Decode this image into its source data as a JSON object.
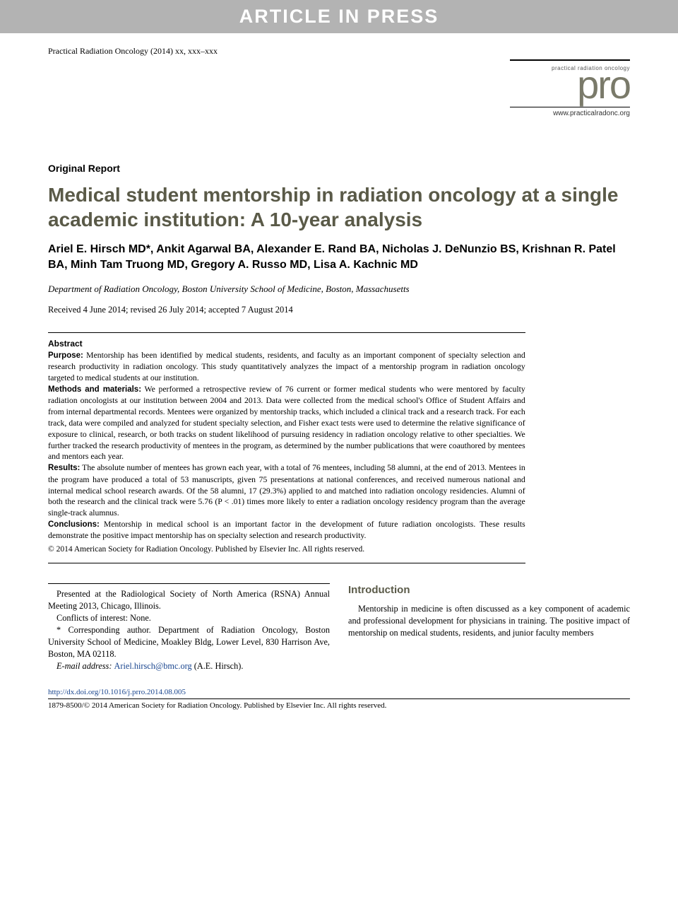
{
  "banner": "ARTICLE IN PRESS",
  "citation": "Practical Radiation Oncology (2014) xx, xxx–xxx",
  "logo": {
    "small": "practical radiation oncology",
    "big": "pro",
    "url": "www.practicalradonc.org",
    "small_color": "#555555",
    "big_color": "#7a7a6a"
  },
  "section_label": "Original Report",
  "title": "Medical student mentorship in radiation oncology at a single academic institution: A 10-year analysis",
  "title_color": "#5a5a48",
  "authors": "Ariel E. Hirsch MD*, Ankit Agarwal BA, Alexander E. Rand BA, Nicholas J. DeNunzio BS, Krishnan R. Patel BA, Minh Tam Truong MD, Gregory A. Russo MD, Lisa A. Kachnic MD",
  "affiliation": "Department of Radiation Oncology, Boston University School of Medicine, Boston, Massachusetts",
  "dates": "Received 4 June 2014; revised 26 July 2014; accepted 7 August 2014",
  "abstract": {
    "heading": "Abstract",
    "purpose_label": "Purpose:",
    "purpose": " Mentorship has been identified by medical students, residents, and faculty as an important component of specialty selection and research productivity in radiation oncology. This study quantitatively analyzes the impact of a mentorship program in radiation oncology targeted to medical students at our institution.",
    "methods_label": "Methods and materials:",
    "methods": " We performed a retrospective review of 76 current or former medical students who were mentored by faculty radiation oncologists at our institution between 2004 and 2013. Data were collected from the medical school's Office of Student Affairs and from internal departmental records. Mentees were organized by mentorship tracks, which included a clinical track and a research track. For each track, data were compiled and analyzed for student specialty selection, and Fisher exact tests were used to determine the relative significance of exposure to clinical, research, or both tracks on student likelihood of pursuing residency in radiation oncology relative to other specialties. We further tracked the research productivity of mentees in the program, as determined by the number publications that were coauthored by mentees and mentors each year.",
    "results_label": "Results:",
    "results": " The absolute number of mentees has grown each year, with a total of 76 mentees, including 58 alumni, at the end of 2013. Mentees in the program have produced a total of 53 manuscripts, given 75 presentations at national conferences, and received numerous national and internal medical school research awards. Of the 58 alumni, 17 (29.3%) applied to and matched into radiation oncology residencies. Alumni of both the research and the clinical track were 5.76 (P < .01) times more likely to enter a radiation oncology residency program than the average single-track alumnus.",
    "conclusions_label": "Conclusions:",
    "conclusions": " Mentorship in medical school is an important factor in the development of future radiation oncologists. These results demonstrate the positive impact mentorship has on specialty selection and research productivity.",
    "copyright": "© 2014 American Society for Radiation Oncology. Published by Elsevier Inc. All rights reserved."
  },
  "footnotes": {
    "presented": "Presented at the Radiological Society of North America (RSNA) Annual Meeting 2013, Chicago, Illinois.",
    "conflicts": "Conflicts of interest: None.",
    "corresponding": "* Corresponding author. Department of Radiation Oncology, Boston University School of Medicine, Moakley Bldg, Lower Level, 830 Harrison Ave, Boston, MA 02118.",
    "email_label": "E-mail address: ",
    "email": "Ariel.hirsch@bmc.org",
    "email_tail": " (A.E. Hirsch)."
  },
  "intro": {
    "heading": "Introduction",
    "body": "Mentorship in medicine is often discussed as a key component of academic and professional development for physicians in training. The positive impact of mentorship on medical students, residents, and junior faculty members"
  },
  "footer": {
    "doi": "http://dx.doi.org/10.1016/j.prro.2014.08.005",
    "copy": "1879-8500/© 2014 American Society for Radiation Oncology. Published by Elsevier Inc. All rights reserved."
  },
  "link_color": "#1a468f"
}
